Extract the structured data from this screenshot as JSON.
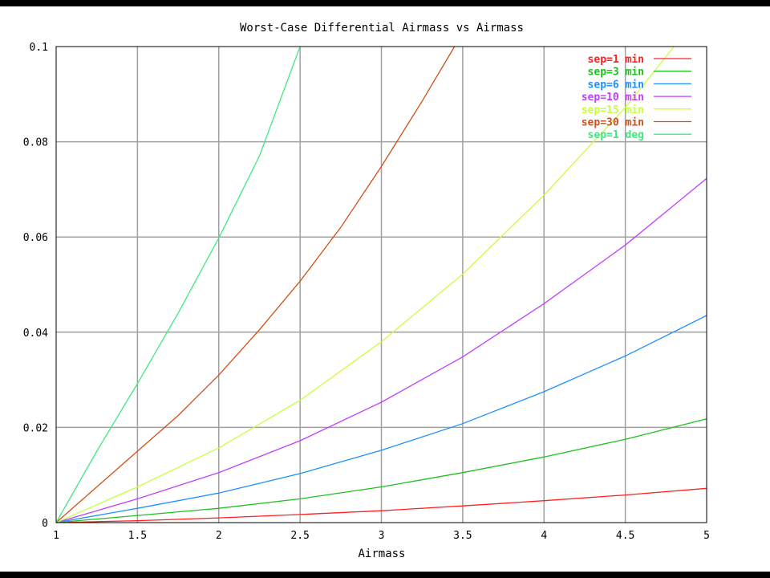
{
  "chart_data": {
    "type": "line",
    "title": "Worst-Case Differential Airmass vs Airmass",
    "xlabel": "Airmass",
    "ylabel": "",
    "xlim": [
      1,
      5
    ],
    "ylim": [
      0,
      0.1
    ],
    "xticks": [
      "1",
      "1.5",
      "2",
      "2.5",
      "3",
      "3.5",
      "4",
      "4.5",
      "5"
    ],
    "yticks": [
      "0",
      "0.02",
      "0.04",
      "0.06",
      "0.08",
      "0.1"
    ],
    "grid": true,
    "legend_position": "top-right",
    "series": [
      {
        "name": "sep=1 min",
        "color": "#ff2020",
        "x": [
          1,
          1.5,
          2,
          2.5,
          3,
          3.5,
          4,
          4.5,
          5
        ],
        "y": [
          0,
          0.0004,
          0.001,
          0.0017,
          0.0025,
          0.0035,
          0.0046,
          0.0058,
          0.0072
        ]
      },
      {
        "name": "sep=3 min",
        "color": "#20c020",
        "x": [
          1,
          1.5,
          2,
          2.5,
          3,
          3.5,
          4,
          4.5,
          5
        ],
        "y": [
          0,
          0.0015,
          0.003,
          0.005,
          0.0075,
          0.0105,
          0.0138,
          0.0175,
          0.0218
        ]
      },
      {
        "name": "sep=6 min",
        "color": "#2090ff",
        "x": [
          1,
          1.5,
          2,
          2.5,
          3,
          3.5,
          4,
          4.5,
          5
        ],
        "y": [
          0,
          0.003,
          0.0062,
          0.0103,
          0.0152,
          0.0208,
          0.0275,
          0.035,
          0.0435
        ]
      },
      {
        "name": "sep=10 min",
        "color": "#c040ff",
        "x": [
          1,
          1.5,
          2,
          2.5,
          3,
          3.5,
          4,
          4.5,
          5
        ],
        "y": [
          0,
          0.005,
          0.0105,
          0.0172,
          0.0253,
          0.0348,
          0.046,
          0.0583,
          0.0723
        ]
      },
      {
        "name": "sep=15 min",
        "color": "#c8ff40",
        "x": [
          1,
          1.5,
          2,
          2.5,
          3,
          3.5,
          4,
          4.5,
          4.8
        ],
        "y": [
          0,
          0.0075,
          0.0157,
          0.0257,
          0.038,
          0.0522,
          0.0688,
          0.0872,
          0.1
        ]
      },
      {
        "name": "sep=30 min",
        "color": "#d05018",
        "x": [
          1,
          1.25,
          1.5,
          1.75,
          2,
          2.25,
          2.5,
          2.75,
          3,
          3.25,
          3.45
        ],
        "y": [
          0,
          0.0075,
          0.015,
          0.0225,
          0.031,
          0.0405,
          0.0507,
          0.062,
          0.0748,
          0.0885,
          0.1
        ]
      },
      {
        "name": "sep=1 deg",
        "color": "#40e880",
        "x": [
          1,
          1.25,
          1.5,
          1.75,
          2,
          2.25,
          2.5
        ],
        "y": [
          0,
          0.015,
          0.0292,
          0.044,
          0.0598,
          0.077,
          0.1
        ]
      }
    ]
  }
}
